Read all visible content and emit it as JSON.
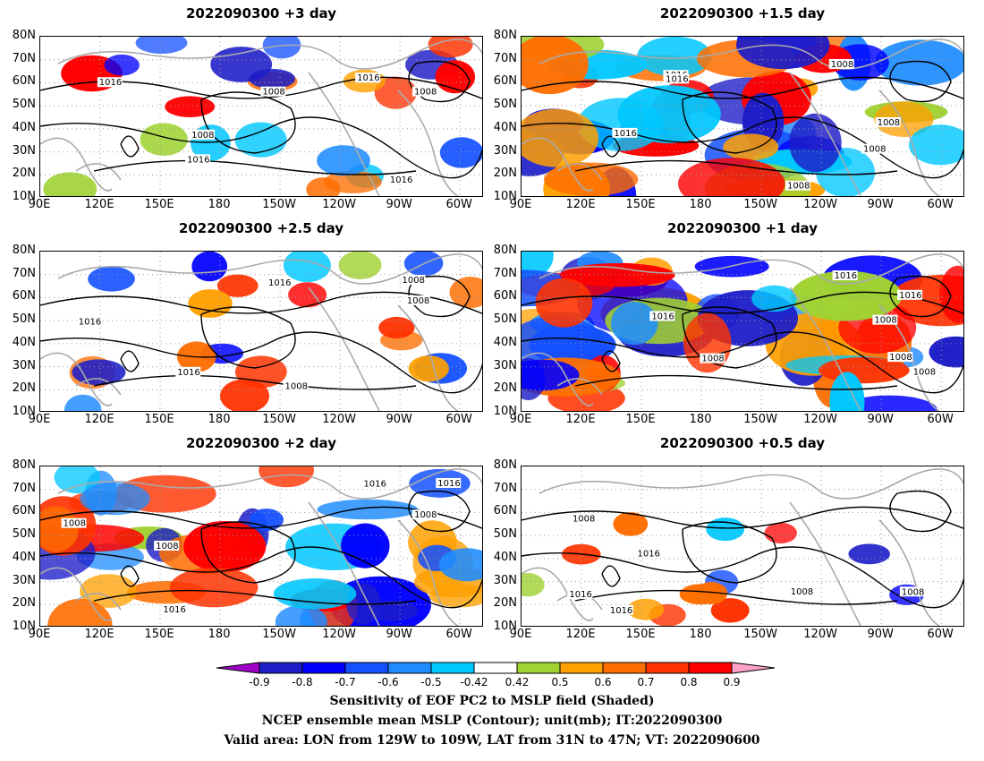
{
  "panels": [
    {
      "title": "2022090300  +3 day",
      "intensity": 0.35,
      "contour_labels": [
        "1008",
        "1016",
        "1016",
        "1016",
        "1008",
        "1016",
        "1008"
      ]
    },
    {
      "title": "2022090300  +1.5 day",
      "intensity": 0.9,
      "contour_labels": [
        "1008",
        "1016",
        "1008",
        "1016",
        "1016",
        "1008",
        "1008"
      ]
    },
    {
      "title": "2022090300  +2.5 day",
      "intensity": 0.3,
      "contour_labels": [
        "1008",
        "1016",
        "1008",
        "1016",
        "1016",
        "1008"
      ]
    },
    {
      "title": "2022090300  +1 day",
      "intensity": 0.95,
      "contour_labels": [
        "1008",
        "1016",
        "1008",
        "1016",
        "1016",
        "1008",
        "1008"
      ]
    },
    {
      "title": "2022090300  +2 day",
      "intensity": 0.8,
      "contour_labels": [
        "1008",
        "1016",
        "1008",
        "1016",
        "1016",
        "1008"
      ]
    },
    {
      "title": "2022090300  +0.5 day",
      "intensity": 0.12,
      "contour_labels": [
        "1008",
        "1016",
        "1016",
        "1008",
        "1016",
        "1008"
      ]
    }
  ],
  "y_ticks": [
    "80N",
    "70N",
    "60N",
    "50N",
    "40N",
    "30N",
    "20N",
    "10N"
  ],
  "x_ticks": [
    "90E",
    "120E",
    "150E",
    "180",
    "150W",
    "120W",
    "90W",
    "60W"
  ],
  "colorbar": {
    "labels": [
      "-0.9",
      "-0.8",
      "-0.7",
      "-0.6",
      "-0.5",
      "-0.42",
      "0.42",
      "0.5",
      "0.6",
      "0.7",
      "0.8",
      "0.9"
    ],
    "colors": [
      "#a000c8",
      "#1e1ec8",
      "#0000ff",
      "#1450ff",
      "#1e8cff",
      "#00c8ff",
      "#ffffff",
      "#a0d232",
      "#ffa000",
      "#ff6e00",
      "#ff3200",
      "#ff0000",
      "#ffa0c8"
    ]
  },
  "captions": [
    "Sensitivity of EOF PC2 to MSLP field (Shaded)",
    "NCEP ensemble mean MSLP (Contour); unit(mb); IT:2022090300",
    "Valid area: LON from 129W to 109W, LAT from 31N to 47N; VT: 2022090600"
  ]
}
